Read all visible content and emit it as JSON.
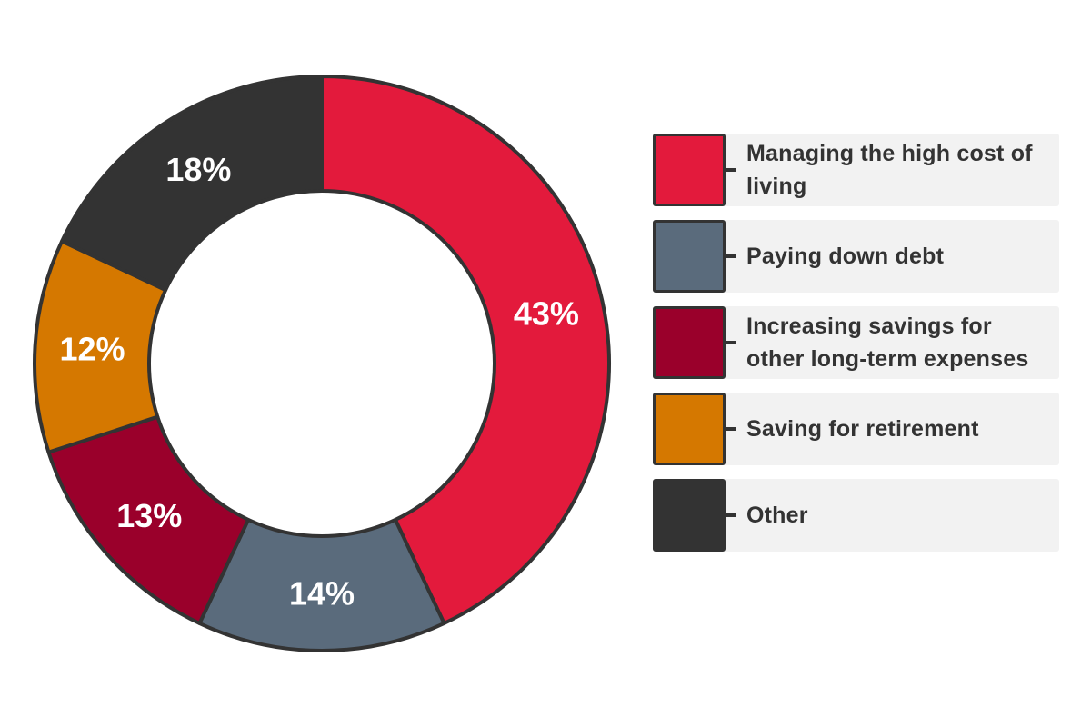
{
  "chart_data": {
    "type": "pie",
    "donut": true,
    "legend_position": "right",
    "slices": [
      {
        "label": "Managing the high cost of living",
        "value": 43,
        "display": "43%",
        "color": "#e31a3c"
      },
      {
        "label": "Paying down debt",
        "value": 14,
        "display": "14%",
        "color": "#5a6b7c"
      },
      {
        "label": "Increasing savings for other long-term expenses",
        "value": 13,
        "display": "13%",
        "color": "#9a002b"
      },
      {
        "label": "Saving for retirement",
        "value": 12,
        "display": "12%",
        "color": "#d57800"
      },
      {
        "label": "Other",
        "value": 18,
        "display": "18%",
        "color": "#333333"
      }
    ],
    "outline_color": "#333333"
  }
}
